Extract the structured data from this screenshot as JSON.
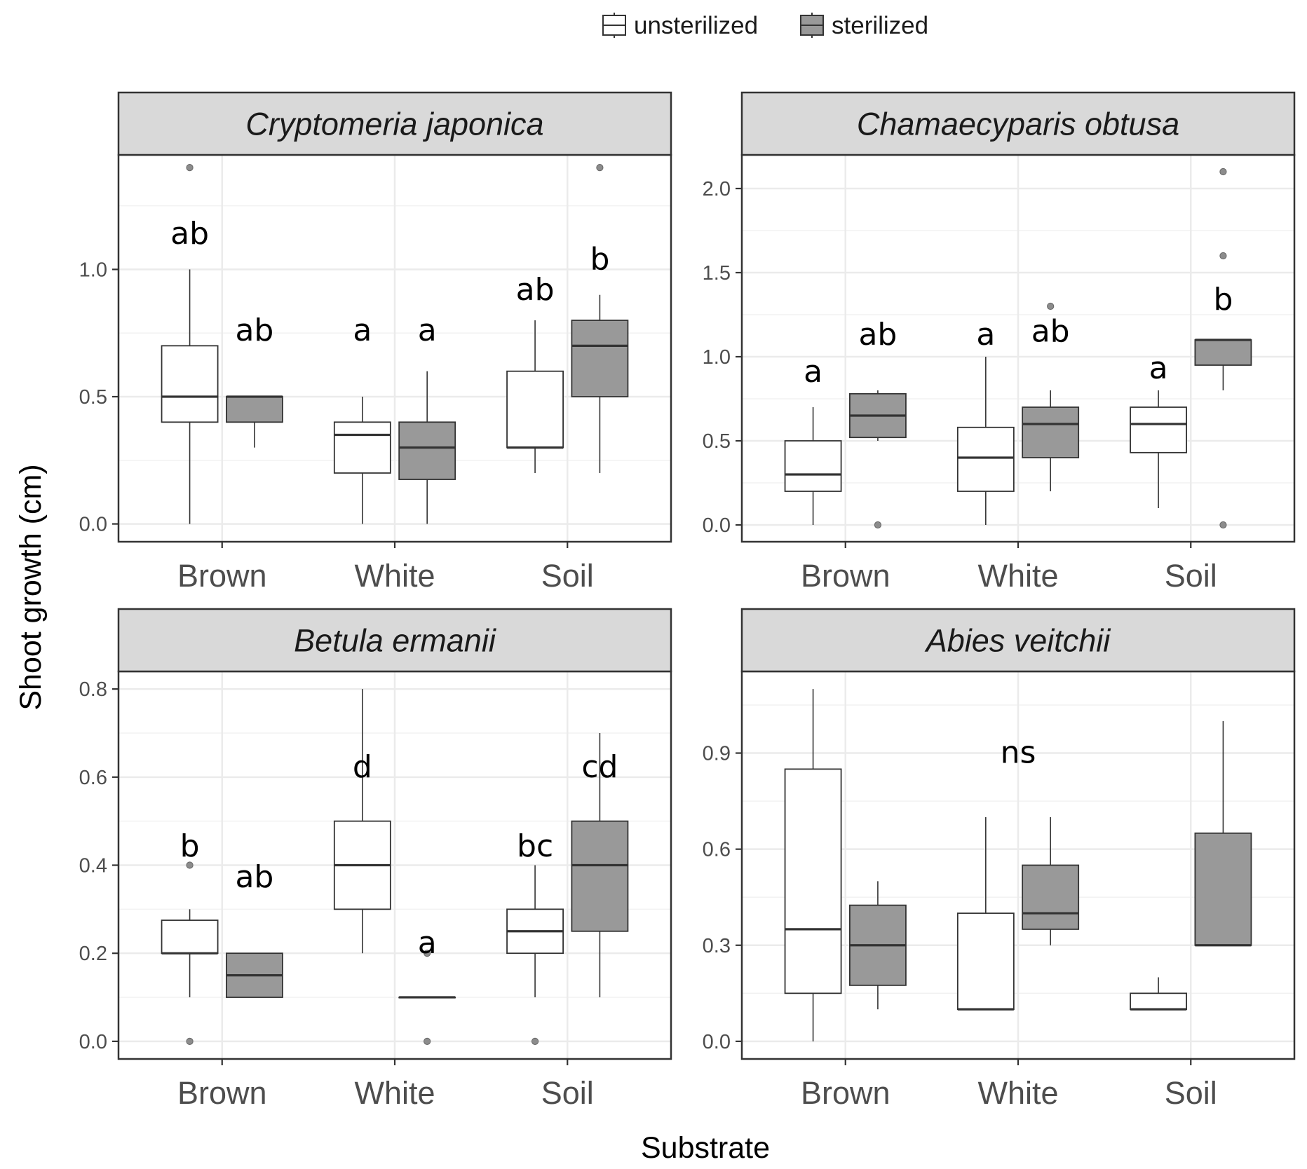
{
  "chart_data": {
    "type": "boxplot",
    "xlabel": "Substrate",
    "ylabel": "Shoot growth (cm)",
    "legend": {
      "position": "top",
      "entries": [
        {
          "name": "unsterilized",
          "fill": "#ffffff"
        },
        {
          "name": "sterilized",
          "fill": "#999999"
        }
      ]
    },
    "categories": [
      "Brown",
      "White",
      "Soil"
    ],
    "grid": true,
    "panels": [
      {
        "title": "Cryptomeria japonica",
        "ylim": [
          -0.07,
          1.45
        ],
        "yticks": [
          0.0,
          0.5,
          1.0
        ],
        "ytick_labels": [
          "0.0",
          "0.5",
          "1.0"
        ],
        "boxes": [
          {
            "category": "Brown",
            "treatment": "unsterilized",
            "whisker_low": 0.0,
            "q1": 0.4,
            "median": 0.5,
            "q3": 0.7,
            "whisker_high": 1.0,
            "outliers": [
              1.4
            ],
            "letter": "ab",
            "letter_y": 1.1
          },
          {
            "category": "Brown",
            "treatment": "sterilized",
            "whisker_low": 0.3,
            "q1": 0.4,
            "median": 0.5,
            "q3": 0.5,
            "whisker_high": 0.5,
            "outliers": [],
            "letter": "ab",
            "letter_y": 0.72
          },
          {
            "category": "White",
            "treatment": "unsterilized",
            "whisker_low": 0.0,
            "q1": 0.2,
            "median": 0.35,
            "q3": 0.4,
            "whisker_high": 0.5,
            "outliers": [],
            "letter": "a",
            "letter_y": 0.72
          },
          {
            "category": "White",
            "treatment": "sterilized",
            "whisker_low": 0.0,
            "q1": 0.175,
            "median": 0.3,
            "q3": 0.4,
            "whisker_high": 0.6,
            "outliers": [],
            "letter": "a",
            "letter_y": 0.72
          },
          {
            "category": "Soil",
            "treatment": "unsterilized",
            "whisker_low": 0.2,
            "q1": 0.3,
            "median": 0.3,
            "q3": 0.6,
            "whisker_high": 0.8,
            "outliers": [],
            "letter": "ab",
            "letter_y": 0.88
          },
          {
            "category": "Soil",
            "treatment": "sterilized",
            "whisker_low": 0.2,
            "q1": 0.5,
            "median": 0.7,
            "q3": 0.8,
            "whisker_high": 0.9,
            "outliers": [
              1.4
            ],
            "letter": "b",
            "letter_y": 1.0
          }
        ]
      },
      {
        "title": "Chamaecyparis obtusa",
        "ylim": [
          -0.1,
          2.2
        ],
        "yticks": [
          0.0,
          0.5,
          1.0,
          1.5,
          2.0
        ],
        "ytick_labels": [
          "0.0",
          "0.5",
          "1.0",
          "1.5",
          "2.0"
        ],
        "boxes": [
          {
            "category": "Brown",
            "treatment": "unsterilized",
            "whisker_low": 0.0,
            "q1": 0.2,
            "median": 0.3,
            "q3": 0.5,
            "whisker_high": 0.7,
            "outliers": [],
            "letter": "a",
            "letter_y": 0.85
          },
          {
            "category": "Brown",
            "treatment": "sterilized",
            "whisker_low": 0.5,
            "q1": 0.52,
            "median": 0.65,
            "q3": 0.78,
            "whisker_high": 0.8,
            "outliers": [
              0.0
            ],
            "letter": "ab",
            "letter_y": 1.07
          },
          {
            "category": "White",
            "treatment": "unsterilized",
            "whisker_low": 0.0,
            "q1": 0.2,
            "median": 0.4,
            "q3": 0.58,
            "whisker_high": 1.0,
            "outliers": [],
            "letter": "a",
            "letter_y": 1.07
          },
          {
            "category": "White",
            "treatment": "sterilized",
            "whisker_low": 0.2,
            "q1": 0.4,
            "median": 0.6,
            "q3": 0.7,
            "whisker_high": 0.8,
            "outliers": [
              1.3
            ],
            "letter": "ab",
            "letter_y": 1.09
          },
          {
            "category": "Soil",
            "treatment": "unsterilized",
            "whisker_low": 0.1,
            "q1": 0.43,
            "median": 0.6,
            "q3": 0.7,
            "whisker_high": 0.8,
            "outliers": [],
            "letter": "a",
            "letter_y": 0.87
          },
          {
            "category": "Soil",
            "treatment": "sterilized",
            "whisker_low": 0.8,
            "q1": 0.95,
            "median": 1.1,
            "q3": 1.1,
            "whisker_high": 1.1,
            "outliers": [
              2.1,
              1.6,
              0.0
            ],
            "letter": "b",
            "letter_y": 1.28
          }
        ]
      },
      {
        "title": "Betula ermanii",
        "ylim": [
          -0.04,
          0.84
        ],
        "yticks": [
          0.0,
          0.2,
          0.4,
          0.6,
          0.8
        ],
        "ytick_labels": [
          "0.0",
          "0.2",
          "0.4",
          "0.6",
          "0.8"
        ],
        "boxes": [
          {
            "category": "Brown",
            "treatment": "unsterilized",
            "whisker_low": 0.1,
            "q1": 0.2,
            "median": 0.2,
            "q3": 0.275,
            "whisker_high": 0.3,
            "outliers": [
              0.4,
              0.0
            ],
            "letter": "b",
            "letter_y": 0.42
          },
          {
            "category": "Brown",
            "treatment": "sterilized",
            "whisker_low": 0.1,
            "q1": 0.1,
            "median": 0.15,
            "q3": 0.2,
            "whisker_high": 0.2,
            "outliers": [],
            "letter": "ab",
            "letter_y": 0.35
          },
          {
            "category": "White",
            "treatment": "unsterilized",
            "whisker_low": 0.2,
            "q1": 0.3,
            "median": 0.4,
            "q3": 0.5,
            "whisker_high": 0.8,
            "outliers": [],
            "letter": "d",
            "letter_y": 0.6
          },
          {
            "category": "White",
            "treatment": "sterilized",
            "whisker_low": 0.1,
            "q1": 0.1,
            "median": 0.1,
            "q3": 0.1,
            "whisker_high": 0.1,
            "outliers": [
              0.2,
              0.0
            ],
            "letter": "a",
            "letter_y": 0.2
          },
          {
            "category": "Soil",
            "treatment": "unsterilized",
            "whisker_low": 0.1,
            "q1": 0.2,
            "median": 0.25,
            "q3": 0.3,
            "whisker_high": 0.4,
            "outliers": [
              0.0
            ],
            "letter": "bc",
            "letter_y": 0.42
          },
          {
            "category": "Soil",
            "treatment": "sterilized",
            "whisker_low": 0.1,
            "q1": 0.25,
            "median": 0.4,
            "q3": 0.5,
            "whisker_high": 0.7,
            "outliers": [],
            "letter": "cd",
            "letter_y": 0.6
          }
        ]
      },
      {
        "title": "Abies veitchii",
        "ylim": [
          -0.055,
          1.155
        ],
        "yticks": [
          0.0,
          0.3,
          0.6,
          0.9
        ],
        "ytick_labels": [
          "0.0",
          "0.3",
          "0.6",
          "0.9"
        ],
        "annotation": {
          "text": "ns",
          "category": "White",
          "y": 0.87
        },
        "boxes": [
          {
            "category": "Brown",
            "treatment": "unsterilized",
            "whisker_low": 0.0,
            "q1": 0.15,
            "median": 0.35,
            "q3": 0.85,
            "whisker_high": 1.1,
            "outliers": []
          },
          {
            "category": "Brown",
            "treatment": "sterilized",
            "whisker_low": 0.1,
            "q1": 0.175,
            "median": 0.3,
            "q3": 0.425,
            "whisker_high": 0.5,
            "outliers": []
          },
          {
            "category": "White",
            "treatment": "unsterilized",
            "whisker_low": 0.1,
            "q1": 0.1,
            "median": 0.1,
            "q3": 0.4,
            "whisker_high": 0.7,
            "outliers": []
          },
          {
            "category": "White",
            "treatment": "sterilized",
            "whisker_low": 0.3,
            "q1": 0.35,
            "median": 0.4,
            "q3": 0.55,
            "whisker_high": 0.7,
            "outliers": []
          },
          {
            "category": "Soil",
            "treatment": "unsterilized",
            "whisker_low": 0.1,
            "q1": 0.1,
            "median": 0.1,
            "q3": 0.15,
            "whisker_high": 0.2,
            "outliers": []
          },
          {
            "category": "Soil",
            "treatment": "sterilized",
            "whisker_low": 0.3,
            "q1": 0.3,
            "median": 0.3,
            "q3": 0.65,
            "whisker_high": 1.0,
            "outliers": []
          }
        ]
      }
    ]
  }
}
